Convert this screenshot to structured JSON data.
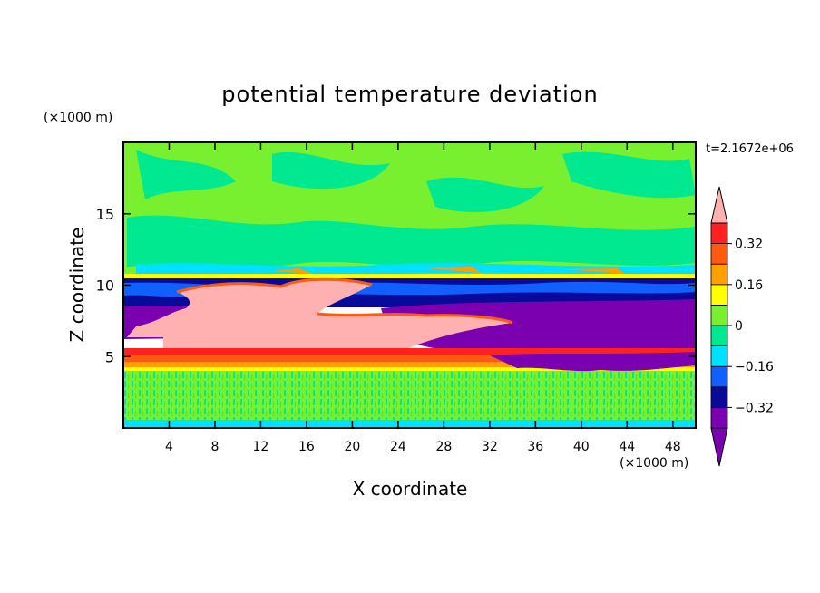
{
  "chart_data": {
    "type": "heatmap",
    "title": "potential temperature deviation",
    "xlabel": "X coordinate",
    "ylabel": "Z coordinate",
    "x_unit": "(×1000 m)",
    "y_unit": "(×1000 m)",
    "time_label": "t=2.1672e+06",
    "xlim": [
      0,
      50
    ],
    "ylim": [
      0,
      20
    ],
    "x_ticks": [
      4,
      8,
      12,
      16,
      20,
      24,
      28,
      32,
      36,
      40,
      44,
      48
    ],
    "y_ticks": [
      5,
      10,
      15
    ],
    "colorbar": {
      "levels": [
        -0.4,
        -0.32,
        -0.24,
        -0.16,
        -0.08,
        0,
        0.08,
        0.16,
        0.24,
        0.32,
        0.4
      ],
      "labels": [
        "-0.32",
        "-0.16",
        "0",
        "0.16",
        "0.32"
      ],
      "label_values": [
        -0.32,
        -0.16,
        0,
        0.16,
        0.32
      ],
      "colors": [
        "#7a00b0",
        "#0a0a9a",
        "#1060ff",
        "#00e0ff",
        "#00e890",
        "#78f030",
        "#ffff00",
        "#ffa000",
        "#ff5a10",
        "#ff2020"
      ],
      "under_color": "#7a00b0",
      "over_color": "#ffb0b0"
    },
    "field_description_values": {
      "upper_troposphere_z_range": [
        10.3,
        20
      ],
      "dark_band_z_range": [
        8.5,
        10.2
      ],
      "warm_anomaly_x_range": [
        2,
        29
      ],
      "warm_anomaly_z_range": [
        5.5,
        10
      ],
      "cold_pool_x_range": [
        25,
        50
      ],
      "cold_pool_z_range": [
        4.2,
        9
      ],
      "boundary_layer_z_range": [
        0,
        4.2
      ]
    }
  }
}
